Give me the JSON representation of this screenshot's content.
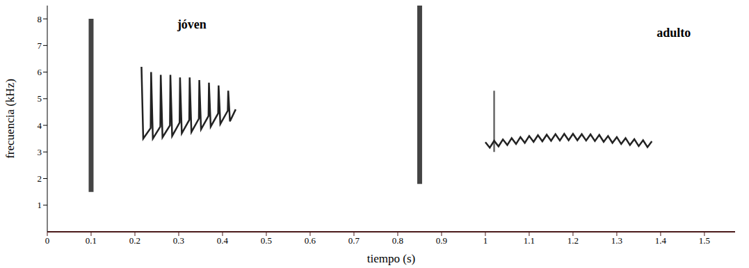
{
  "chart_data": {
    "type": "line",
    "x_label": "tiempo (s)",
    "y_label": "frecuencia (kHz)",
    "xlim": [
      0,
      1.57
    ],
    "xticks": [
      0,
      0.1,
      0.2,
      0.3,
      0.4,
      0.5,
      0.6,
      0.7,
      0.8,
      0.9,
      1,
      1.1,
      1.2,
      1.3,
      1.4,
      1.5
    ],
    "ylim": [
      0,
      8.5
    ],
    "yticks": [
      1,
      2,
      3,
      4,
      5,
      6,
      7,
      8
    ],
    "grid": false,
    "annotations": [
      {
        "text": "jóven",
        "x": 0.33,
        "y": 7.8
      },
      {
        "text": "adulto",
        "x": 1.43,
        "y": 7.5
      }
    ],
    "series": [
      {
        "color": "#444444",
        "line_style": "thick",
        "x": [
          0.1,
          0.1
        ],
        "values": [
          1.5,
          8.0
        ]
      },
      {
        "color": "#222222",
        "line_style": "solid",
        "x": [
          0.215,
          0.219,
          0.236,
          0.237,
          0.241,
          0.258,
          0.259,
          0.263,
          0.28,
          0.281,
          0.285,
          0.302,
          0.303,
          0.307,
          0.324,
          0.325,
          0.329,
          0.346,
          0.347,
          0.351,
          0.368,
          0.369,
          0.373,
          0.39,
          0.391,
          0.395,
          0.412,
          0.413,
          0.417,
          0.43
        ],
        "values": [
          6.2,
          3.5,
          3.9,
          6.0,
          3.5,
          3.95,
          5.9,
          3.55,
          4.0,
          5.9,
          3.6,
          4.1,
          5.8,
          3.7,
          4.2,
          5.8,
          3.75,
          4.25,
          5.7,
          3.85,
          4.35,
          5.6,
          3.95,
          4.45,
          5.5,
          4.05,
          4.55,
          5.3,
          4.15,
          4.6
        ]
      },
      {
        "color": "#444444",
        "line_style": "thick",
        "x": [
          0.85,
          0.85
        ],
        "values": [
          1.8,
          8.5
        ]
      },
      {
        "color": "#666666",
        "line_style": "solid",
        "x": [
          1.02,
          1.02
        ],
        "values": [
          3.0,
          5.3
        ]
      },
      {
        "color": "#222222",
        "line_style": "solid",
        "x": [
          1.0,
          1.01,
          1.02,
          1.03,
          1.04,
          1.05,
          1.06,
          1.07,
          1.08,
          1.09,
          1.1,
          1.11,
          1.12,
          1.13,
          1.14,
          1.15,
          1.16,
          1.17,
          1.18,
          1.19,
          1.2,
          1.21,
          1.22,
          1.23,
          1.24,
          1.25,
          1.26,
          1.27,
          1.28,
          1.29,
          1.3,
          1.31,
          1.32,
          1.33,
          1.34,
          1.35,
          1.36,
          1.37,
          1.38
        ],
        "values": [
          3.37,
          3.16,
          3.42,
          3.21,
          3.47,
          3.26,
          3.52,
          3.3,
          3.56,
          3.34,
          3.6,
          3.38,
          3.63,
          3.4,
          3.65,
          3.42,
          3.67,
          3.43,
          3.68,
          3.44,
          3.68,
          3.44,
          3.67,
          3.43,
          3.66,
          3.41,
          3.64,
          3.38,
          3.6,
          3.34,
          3.56,
          3.3,
          3.52,
          3.26,
          3.48,
          3.22,
          3.44,
          3.18,
          3.4
        ]
      }
    ]
  }
}
